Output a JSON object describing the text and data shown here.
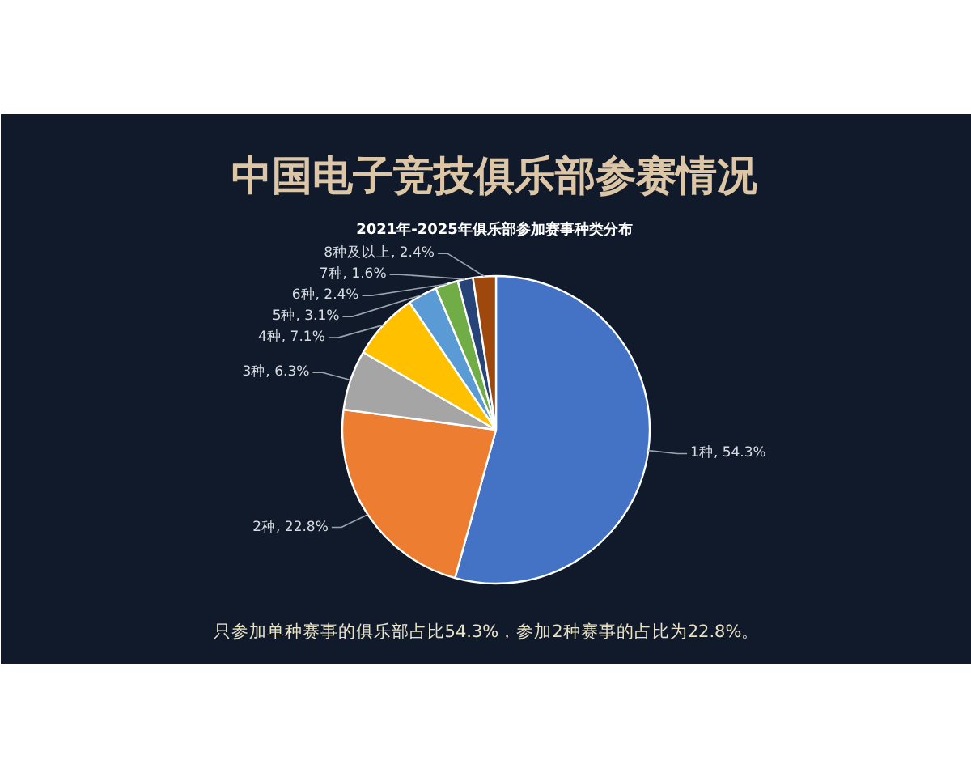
{
  "chart_data": {
    "type": "pie",
    "title": "中国电子竞技俱乐部参赛情况",
    "subtitle": "2021年-2025年俱乐部参加赛事种类分布",
    "categories": [
      "1种",
      "2种",
      "3种",
      "4种",
      "5种",
      "6种",
      "7种",
      "8种及以上"
    ],
    "values": [
      54.3,
      22.8,
      6.3,
      7.1,
      3.1,
      2.4,
      1.6,
      2.4
    ],
    "colors": [
      "#4472c4",
      "#ed7d31",
      "#a5a5a5",
      "#ffc000",
      "#5b9bd5",
      "#70ad47",
      "#264478",
      "#9e480e"
    ],
    "value_labels": [
      "54.3%",
      "22.8%",
      "6.3%",
      "7.1%",
      "3.1%",
      "2.4%",
      "1.6%",
      "2.4%"
    ],
    "annotations": [
      "只参加单种赛事的俱乐部占比54.3%，参加2种赛事的占比为22.8%。"
    ]
  }
}
